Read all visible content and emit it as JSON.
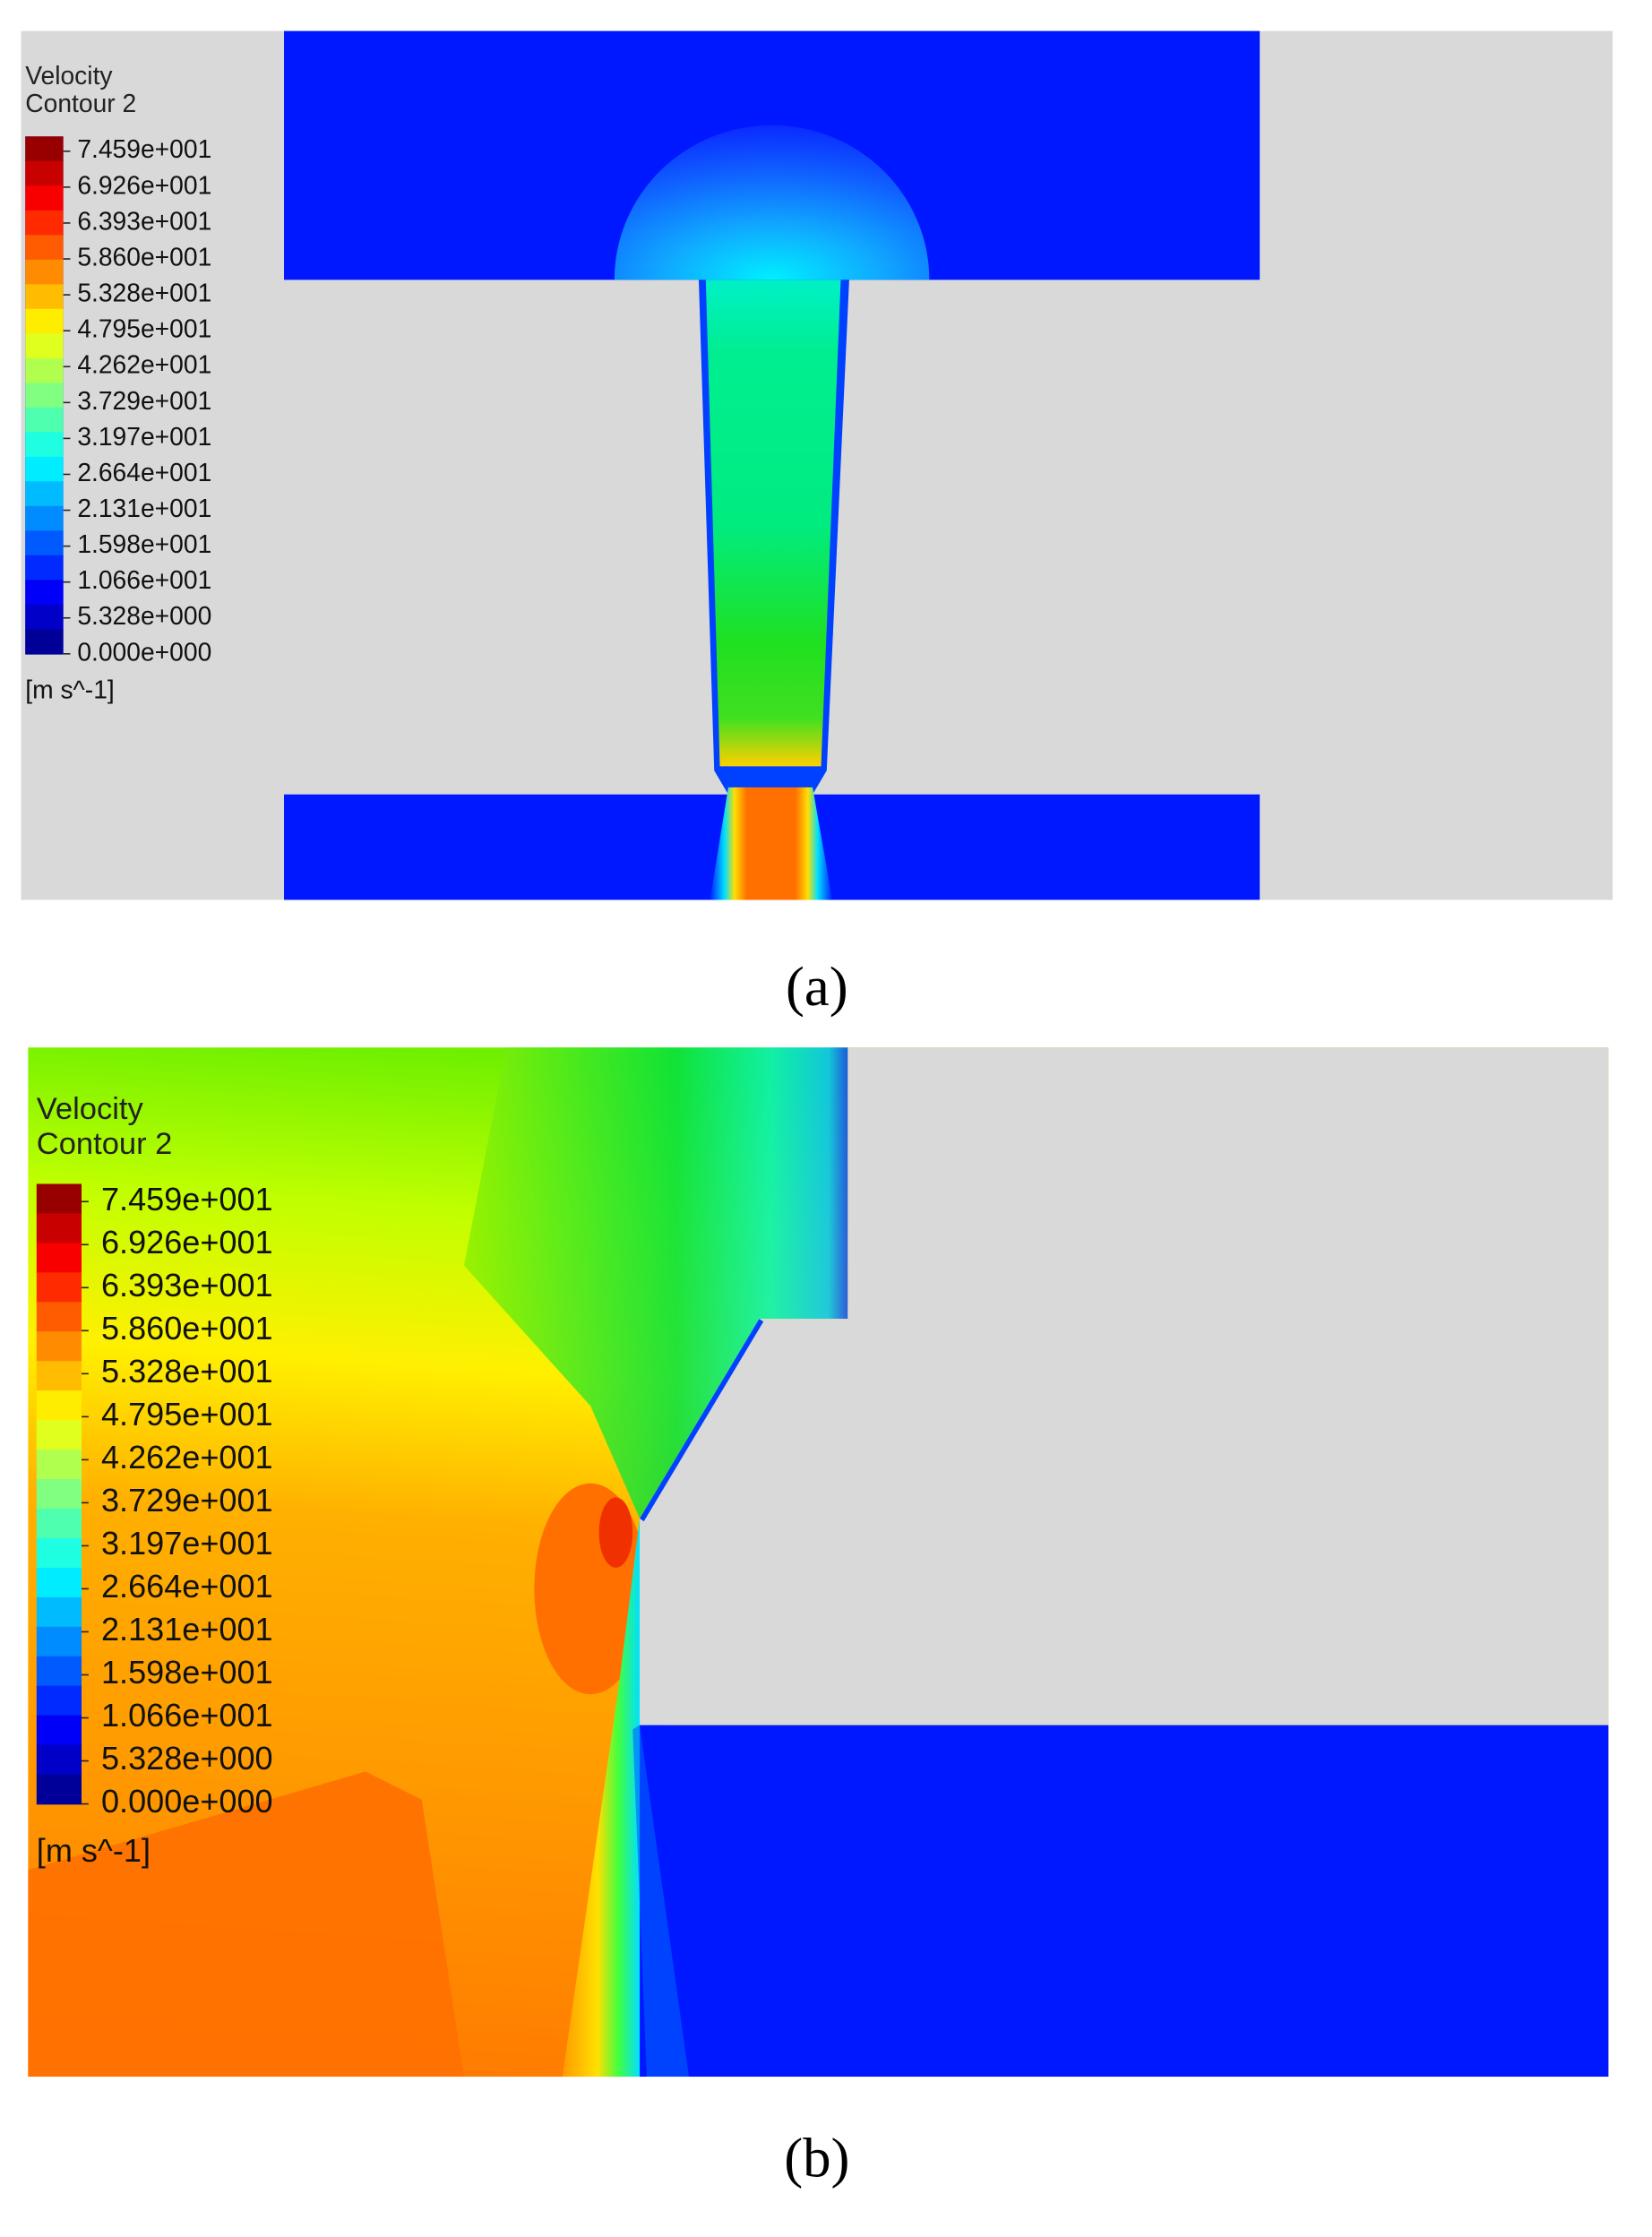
{
  "panels": [
    {
      "caption": "(a)",
      "legend": {
        "title": [
          "Velocity",
          "Contour 2"
        ],
        "levels": [
          "7.459e+001",
          "6.926e+001",
          "6.393e+001",
          "5.860e+001",
          "5.328e+001",
          "4.795e+001",
          "4.262e+001",
          "3.729e+001",
          "3.197e+001",
          "2.664e+001",
          "2.131e+001",
          "1.598e+001",
          "1.066e+001",
          "5.328e+000",
          "0.000e+000"
        ],
        "unit": "[m s^-1]"
      }
    },
    {
      "caption": "(b)",
      "legend": {
        "title": [
          "Velocity",
          "Contour 2"
        ],
        "levels": [
          "7.459e+001",
          "6.926e+001",
          "6.393e+001",
          "5.860e+001",
          "5.328e+001",
          "4.795e+001",
          "4.262e+001",
          "3.729e+001",
          "3.197e+001",
          "2.664e+001",
          "2.131e+001",
          "1.598e+001",
          "1.066e+001",
          "5.328e+000",
          "0.000e+000"
        ],
        "unit": "[m s^-1]"
      }
    }
  ]
}
